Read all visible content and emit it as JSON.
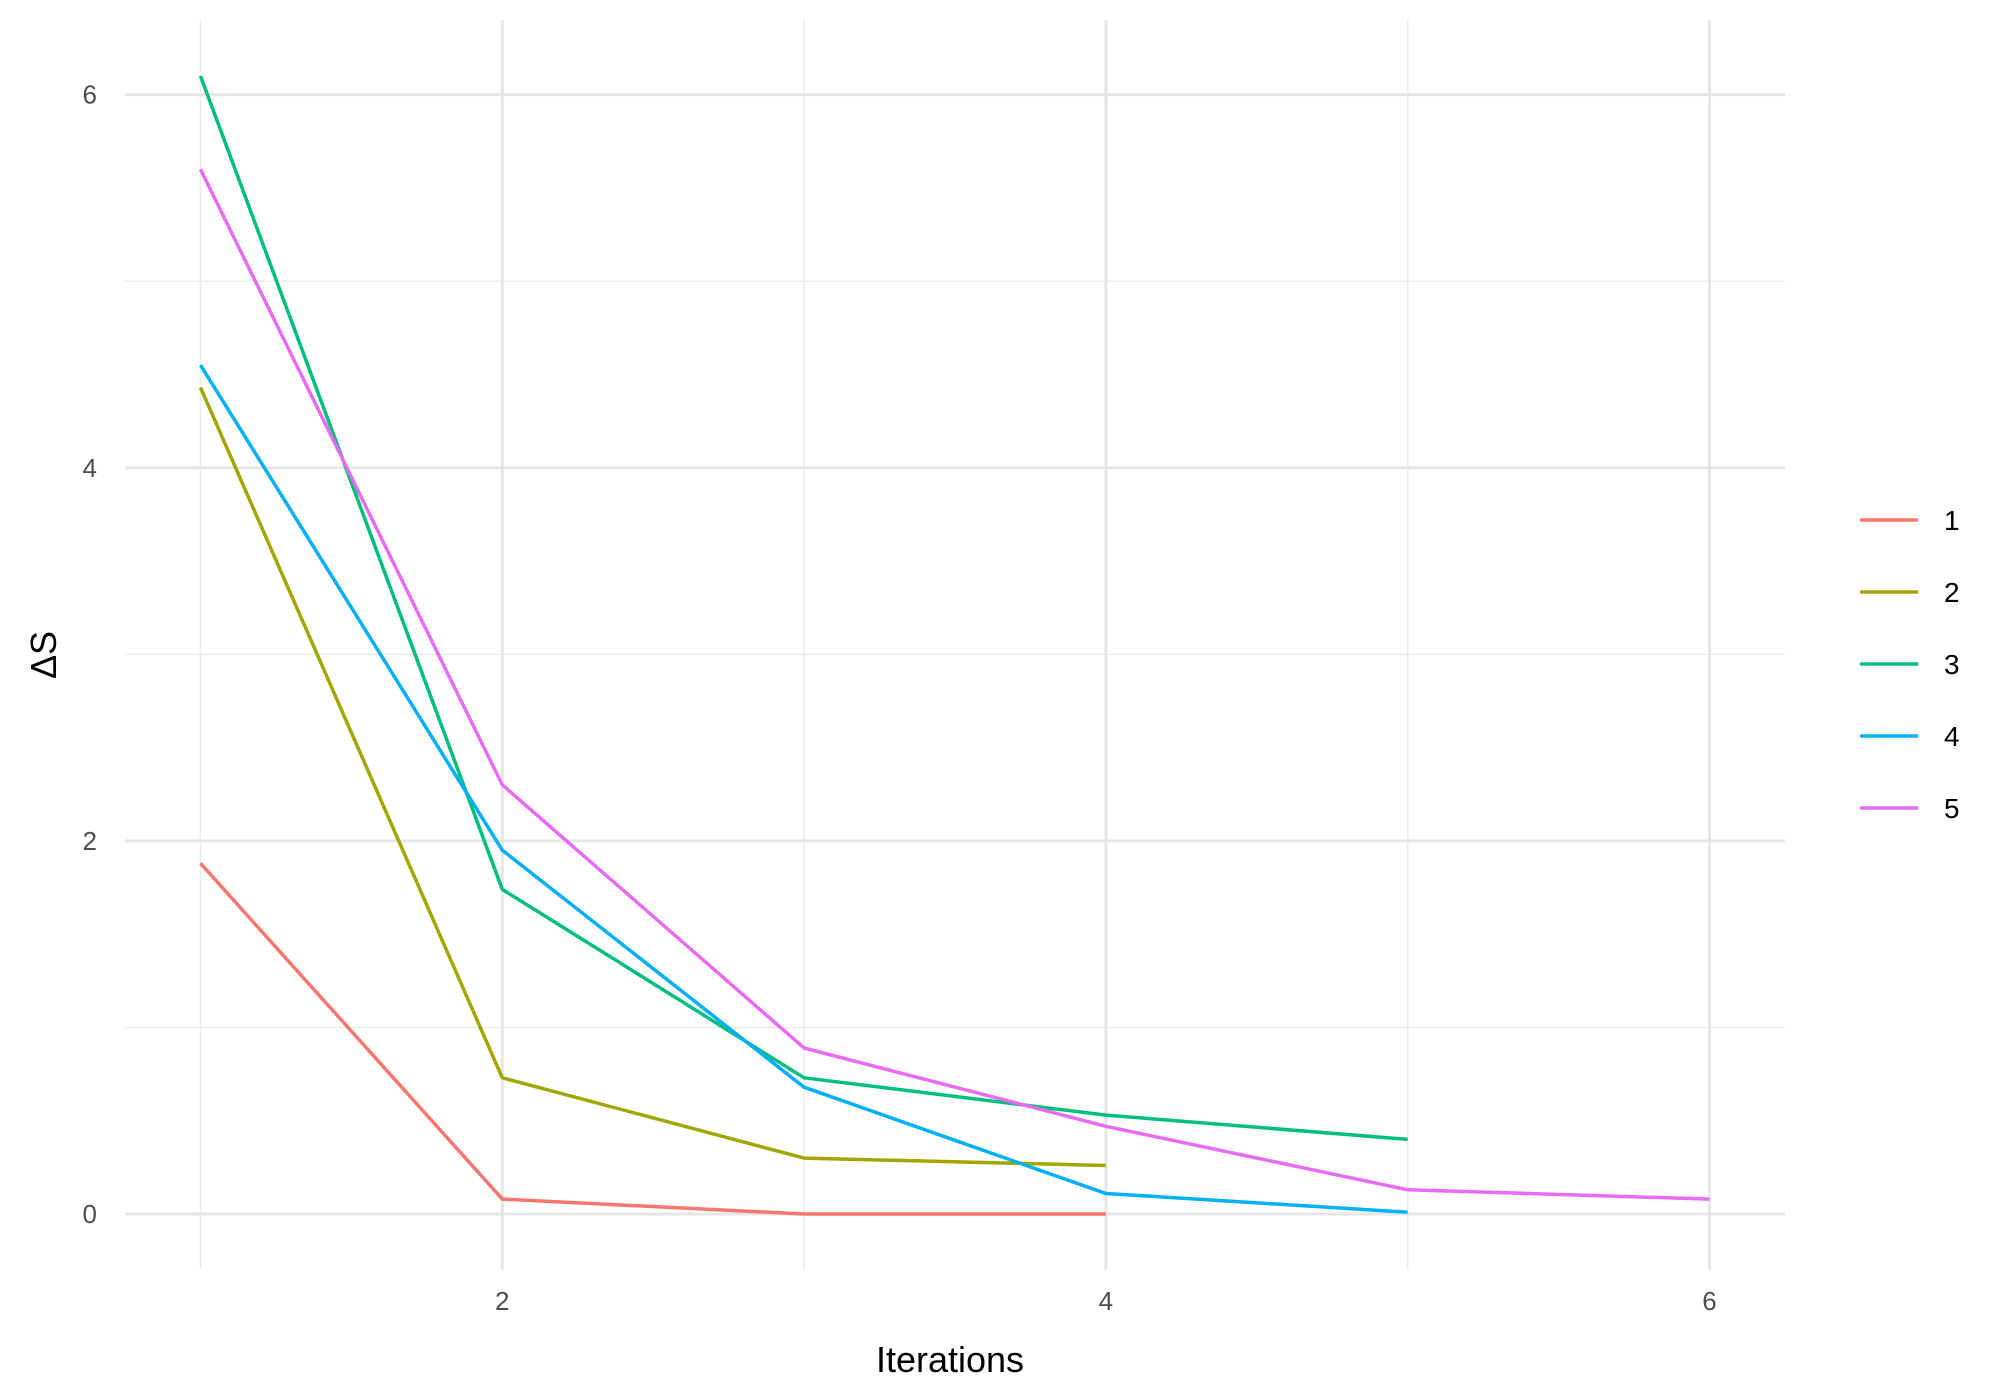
{
  "chart_data": {
    "type": "line",
    "xlabel": "Iterations",
    "ylabel": "ΔS",
    "xlim": [
      0.75,
      6.25
    ],
    "ylim": [
      -0.3,
      6.4
    ],
    "x_ticks": [
      2,
      4,
      6
    ],
    "x_minor": [
      1,
      3,
      5
    ],
    "y_ticks": [
      0,
      2,
      4,
      6
    ],
    "y_minor": [
      1,
      3,
      5
    ],
    "grid": true,
    "legend_position": "right",
    "series": [
      {
        "name": "1",
        "color": "#F8766D",
        "x": [
          1,
          2,
          3,
          4
        ],
        "y": [
          1.88,
          0.08,
          0.0,
          0.0
        ]
      },
      {
        "name": "2",
        "color": "#A3A500",
        "x": [
          1,
          2,
          3,
          4
        ],
        "y": [
          4.43,
          0.73,
          0.3,
          0.26
        ]
      },
      {
        "name": "3",
        "color": "#00BF7D",
        "x": [
          1,
          2,
          3,
          4,
          5
        ],
        "y": [
          6.1,
          1.74,
          0.73,
          0.53,
          0.4
        ]
      },
      {
        "name": "4",
        "color": "#00B0F6",
        "x": [
          1,
          2,
          3,
          4,
          5
        ],
        "y": [
          4.55,
          1.95,
          0.68,
          0.11,
          0.01
        ]
      },
      {
        "name": "5",
        "color": "#E76BF3",
        "x": [
          1,
          2,
          3,
          4,
          5,
          6
        ],
        "y": [
          5.6,
          2.3,
          0.89,
          0.47,
          0.13,
          0.08
        ]
      }
    ]
  }
}
